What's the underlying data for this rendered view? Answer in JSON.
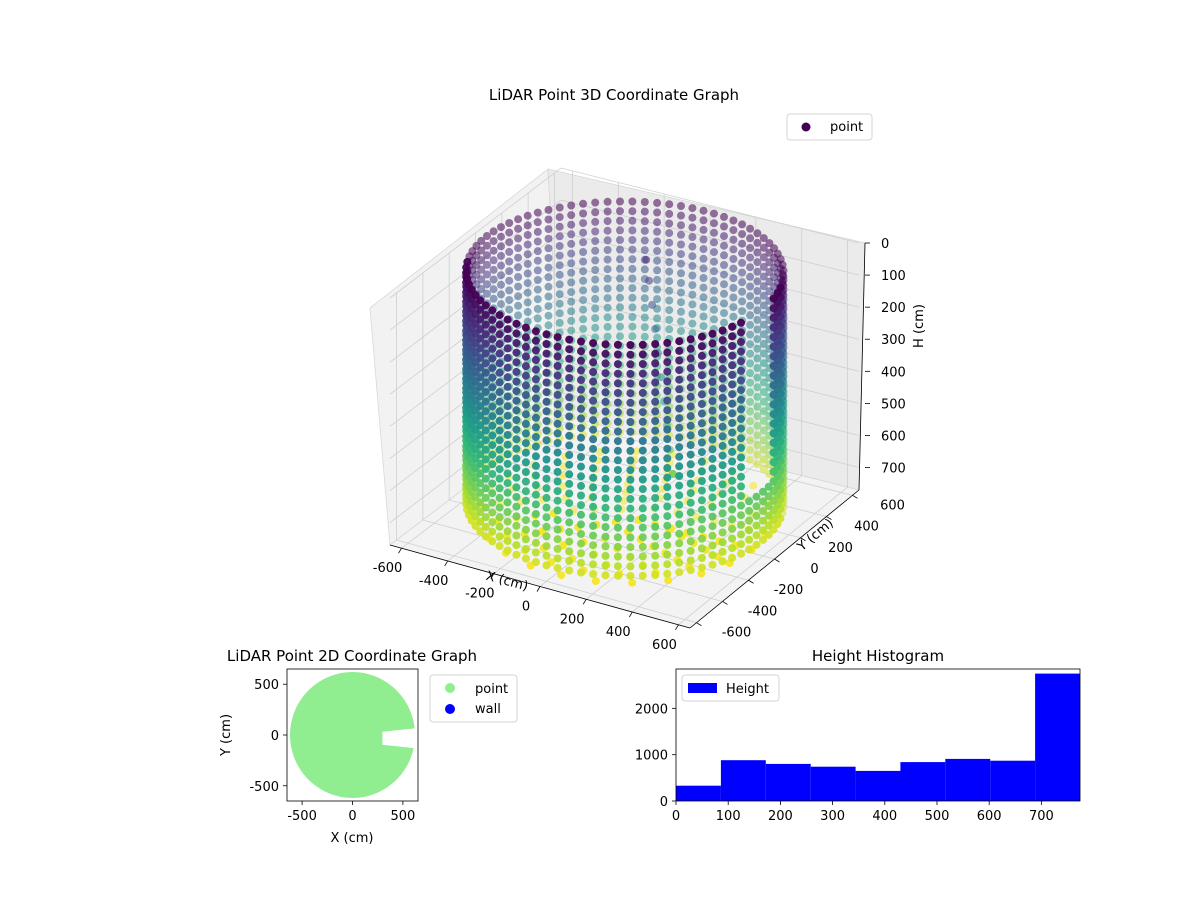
{
  "chart_data": [
    {
      "type": "scatter3d",
      "title": "LiDAR Point 3D Coordinate Graph",
      "xlabel": "X (cm)",
      "ylabel": "Y (cm)",
      "zlabel": "H (cm)",
      "xticks": [
        -600,
        -400,
        -200,
        0,
        200,
        400,
        600
      ],
      "yticks": [
        -600,
        -400,
        -200,
        0,
        200,
        400,
        600
      ],
      "zticks": [
        0,
        100,
        200,
        300,
        400,
        500,
        600,
        700
      ],
      "xlim": [
        -650,
        650
      ],
      "ylim": [
        -650,
        650
      ],
      "zlim": [
        0,
        770
      ],
      "z_inverted": true,
      "colormap": "viridis",
      "legend": {
        "position": "top-right",
        "entries": [
          {
            "label": "point",
            "color": "#440154"
          }
        ]
      },
      "structure": {
        "wall": {
          "shape": "cylinder",
          "radius_cm": 600,
          "height_range_cm": [
            0,
            770
          ]
        },
        "room_opening_y_cm": [
          -120,
          60
        ],
        "diagonal_feature_points": [
          [
            -90,
            320,
            80
          ],
          [
            -60,
            290,
            130
          ],
          [
            -30,
            260,
            190
          ],
          [
            0,
            230,
            250
          ],
          [
            30,
            200,
            310
          ],
          [
            60,
            170,
            370
          ],
          [
            90,
            140,
            430
          ],
          [
            120,
            110,
            490
          ],
          [
            150,
            80,
            550
          ],
          [
            180,
            50,
            610
          ]
        ]
      }
    },
    {
      "type": "scatter",
      "title": "LiDAR Point 2D Coordinate Graph",
      "xlabel": "X (cm)",
      "ylabel": "Y (cm)",
      "xticks": [
        -500,
        0,
        500
      ],
      "yticks": [
        -500,
        0,
        500
      ],
      "xlim": [
        -650,
        650
      ],
      "ylim": [
        -650,
        650
      ],
      "legend": {
        "position": "outside-right",
        "entries": [
          {
            "label": "point",
            "color": "#90ee90"
          },
          {
            "label": "wall",
            "color": "#0000ff"
          }
        ]
      },
      "series": [
        {
          "name": "point",
          "color": "#90ee90",
          "shape": "disk",
          "radius_cm": 620,
          "opening_y_cm": [
            -120,
            60
          ]
        }
      ]
    },
    {
      "type": "bar",
      "title": "Height Histogram",
      "bin_edges": [
        0,
        86,
        172,
        258,
        344,
        430,
        516,
        602,
        688,
        774
      ],
      "values": [
        330,
        880,
        800,
        740,
        650,
        840,
        910,
        870,
        2750
      ],
      "xticks": [
        0,
        100,
        200,
        300,
        400,
        500,
        600,
        700
      ],
      "yticks": [
        0,
        1000,
        2000
      ],
      "xlim": [
        0,
        774
      ],
      "ylim": [
        0,
        2850
      ],
      "color": "#0000ff",
      "legend": {
        "position": "top-left",
        "entries": [
          {
            "label": "Height",
            "color": "#0000ff"
          }
        ]
      }
    }
  ]
}
